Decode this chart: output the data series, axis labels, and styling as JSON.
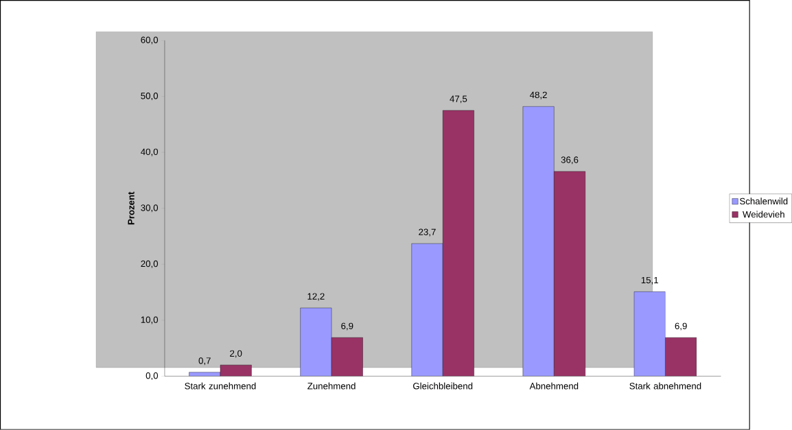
{
  "chart_data": {
    "type": "bar",
    "ylabel": "Prozent",
    "categories": [
      "Stark zunehmend",
      "Zunehmend",
      "Gleichbleibend",
      "Abnehmend",
      "Stark abnehmend"
    ],
    "series": [
      {
        "name": "Schalenwild",
        "color": "#9999ff",
        "values": [
          0.7,
          12.2,
          23.7,
          48.2,
          15.1
        ],
        "value_labels": [
          "0,7",
          "12,2",
          "23,7",
          "48,2",
          "15,1"
        ]
      },
      {
        "name": "Weidevieh",
        "color": "#993366",
        "values": [
          2.0,
          6.9,
          47.5,
          36.6,
          6.9
        ],
        "value_labels": [
          "2,0",
          "6,9",
          "47,5",
          "36,6",
          "6,9"
        ]
      }
    ],
    "ylim": [
      0,
      60
    ],
    "yticks": [
      {
        "value": 0,
        "label": "0,0"
      },
      {
        "value": 10,
        "label": "10,0"
      },
      {
        "value": 20,
        "label": "20,0"
      },
      {
        "value": 30,
        "label": "30,0"
      },
      {
        "value": 40,
        "label": "40,0"
      },
      {
        "value": 50,
        "label": "50,0"
      },
      {
        "value": 60,
        "label": "60,0"
      }
    ],
    "grid": false,
    "legend": "right"
  }
}
